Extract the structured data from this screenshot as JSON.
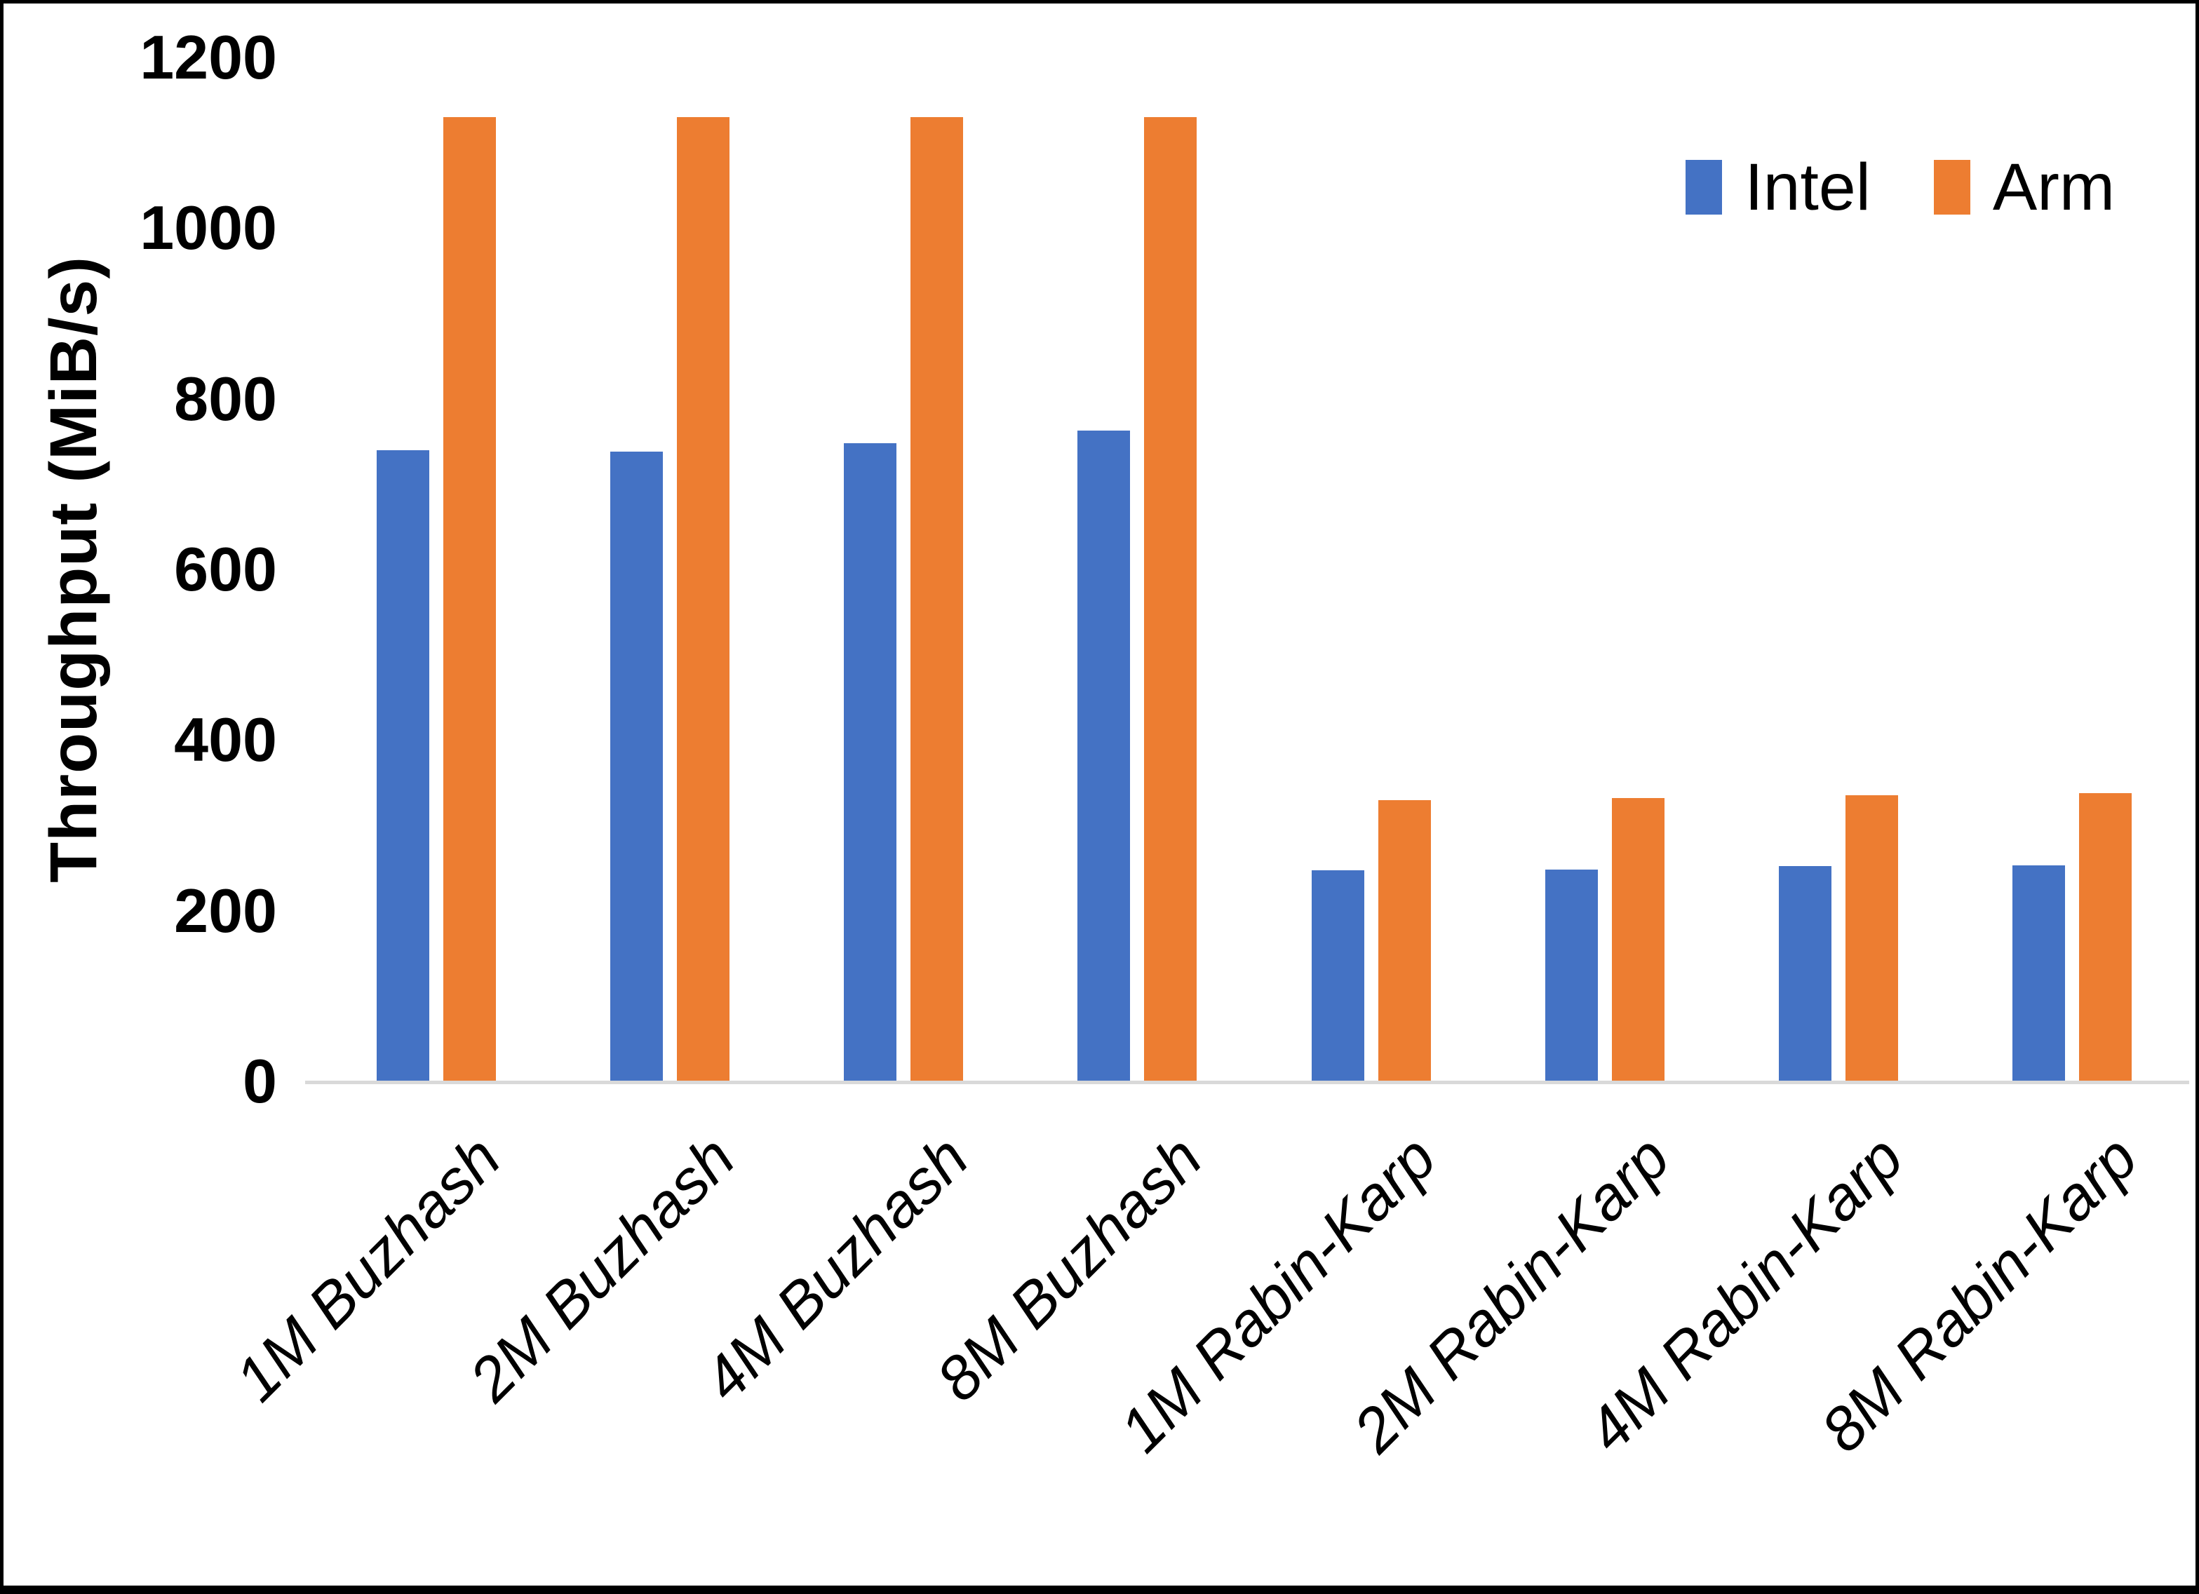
{
  "chart_data": {
    "type": "bar",
    "title": "",
    "xlabel": "",
    "ylabel": "Throughput (MiB/s)",
    "categories": [
      "1M Buzhash",
      "2M Buzhash",
      "4M Buzhash",
      "8M Buzhash",
      "1M Rabin-Karp",
      "2M Rabin-Karp",
      "4M Rabin-Karp",
      "8M Rabin-Karp"
    ],
    "series": [
      {
        "name": "Intel",
        "color": "#4472C4",
        "values": [
          740,
          738,
          748,
          763,
          247,
          248,
          252,
          253
        ]
      },
      {
        "name": "Arm",
        "color": "#ED7D31",
        "values": [
          1130,
          1130,
          1130,
          1130,
          330,
          332,
          335,
          338
        ]
      }
    ],
    "ylim": [
      0,
      1200
    ],
    "yticks": [
      0,
      200,
      400,
      600,
      800,
      1000,
      1200
    ],
    "grid": false,
    "legend_position": "top-right",
    "x_label_rotation_deg": -45
  },
  "colors": {
    "background": "#FFFFFF",
    "frame_border": "#000000",
    "axis_line": "#D9D9D9",
    "text": "#000000",
    "intel": "#4472C4",
    "arm": "#ED7D31"
  }
}
